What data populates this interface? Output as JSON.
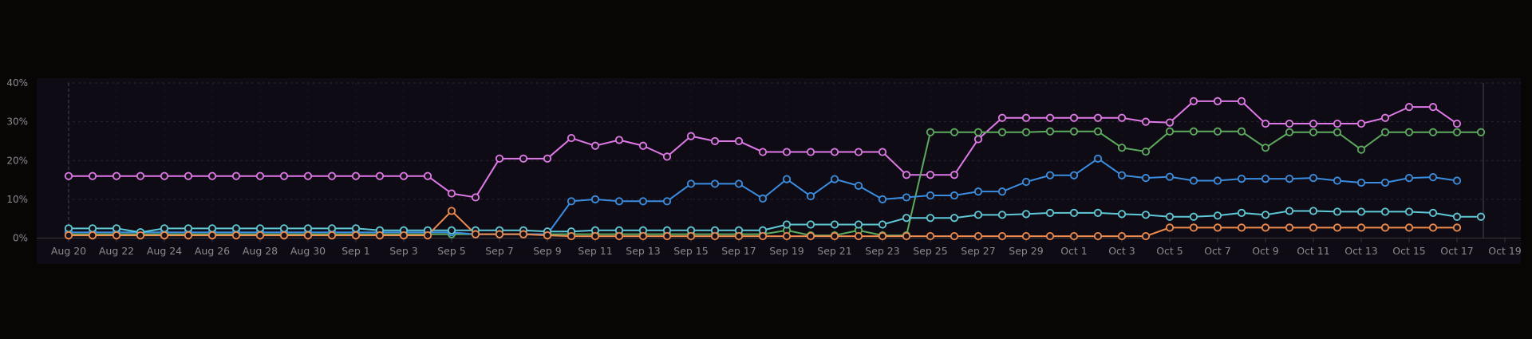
{
  "chart_data": {
    "type": "line",
    "title": "",
    "xlabel": "",
    "ylabel": "",
    "ylim": [
      0,
      40
    ],
    "y_ticks": [
      "0%",
      "10%",
      "20%",
      "30%",
      "40%"
    ],
    "x_ticks": [
      "Aug 20",
      "Aug 22",
      "Aug 24",
      "Aug 26",
      "Aug 28",
      "Aug 30",
      "Sep 1",
      "Sep 3",
      "Sep 5",
      "Sep 7",
      "Sep 9",
      "Sep 11",
      "Sep 13",
      "Sep 15",
      "Sep 17",
      "Sep 19",
      "Sep 21",
      "Sep 23",
      "Sep 25",
      "Sep 27",
      "Sep 29",
      "Oct 1",
      "Oct 3",
      "Oct 5",
      "Oct 7",
      "Oct 9",
      "Oct 11",
      "Oct 13",
      "Oct 15",
      "Oct 17",
      "Oct 19"
    ],
    "x_start": "Aug 20",
    "x_step_days": 1,
    "grid": true,
    "legend": "none",
    "background_color": "#070605",
    "plot_background_color": "#0e0b14",
    "series": [
      {
        "color": "#e079e8",
        "values": [
          16,
          16,
          16,
          16,
          16,
          16,
          16,
          16,
          16,
          16,
          16,
          16,
          16,
          16,
          16,
          16,
          11.5,
          10.5,
          20.5,
          20.5,
          20.5,
          25.8,
          23.8,
          25.3,
          23.8,
          21,
          26.3,
          25,
          25,
          22.2,
          22.2,
          22.2,
          22.2,
          22.2,
          22.2,
          16.3,
          16.3,
          16.3,
          25.5,
          31,
          31,
          31,
          31,
          31,
          31,
          30,
          29.8,
          35.3,
          35.3,
          35.3,
          29.5,
          29.5,
          29.5,
          29.5,
          29.5,
          31,
          33.8,
          33.8,
          29.5
        ]
      },
      {
        "color": "#5dab5f",
        "values": [
          1,
          1,
          1,
          1,
          1,
          1,
          1,
          1,
          1,
          1,
          1,
          1,
          1,
          1,
          1,
          1,
          1,
          1,
          1,
          1,
          1,
          1,
          1,
          1,
          1,
          1,
          1,
          1,
          1,
          1,
          2,
          0.7,
          0.7,
          2,
          0.7,
          0.7,
          27.3,
          27.3,
          27.3,
          27.3,
          27.3,
          27.5,
          27.5,
          27.5,
          23.3,
          22.3,
          27.5,
          27.5,
          27.5,
          27.5,
          23.3,
          27.3,
          27.3,
          27.3,
          22.8,
          27.3,
          27.3,
          27.3,
          27.3,
          27.3
        ]
      },
      {
        "color": "#3a8de0",
        "values": [
          1.5,
          1.5,
          1.5,
          1.5,
          1.5,
          1.5,
          1.5,
          1.5,
          1.5,
          1.5,
          1.5,
          1.5,
          1.5,
          1.5,
          1.5,
          1.5,
          1.5,
          1,
          1,
          1,
          1,
          9.5,
          10,
          9.5,
          9.5,
          9.5,
          14,
          14,
          14,
          10.2,
          15.2,
          10.8,
          15.2,
          13.5,
          10,
          10.5,
          11,
          11,
          12,
          12,
          14.5,
          16.2,
          16.2,
          20.5,
          16.2,
          15.5,
          15.8,
          14.8,
          14.8,
          15.3,
          15.3,
          15.3,
          15.5,
          14.8,
          14.3,
          14.3,
          15.5,
          15.7,
          14.8
        ]
      },
      {
        "color": "#5fc8d6",
        "values": [
          2.5,
          2.5,
          2.5,
          1.5,
          2.5,
          2.5,
          2.5,
          2.5,
          2.5,
          2.5,
          2.5,
          2.5,
          2.5,
          2,
          2,
          2,
          2,
          2,
          2,
          2,
          1.7,
          1.7,
          2,
          2,
          2,
          2,
          2,
          2,
          2,
          2,
          3.5,
          3.5,
          3.5,
          3.5,
          3.5,
          5.2,
          5.2,
          5.2,
          6,
          6,
          6.2,
          6.5,
          6.5,
          6.5,
          6.2,
          6,
          5.5,
          5.5,
          5.8,
          6.5,
          6,
          7,
          7,
          6.8,
          6.8,
          6.8,
          6.8,
          6.5,
          5.5,
          5.5
        ]
      },
      {
        "color": "#ef8b4e",
        "values": [
          0.7,
          0.7,
          0.7,
          0.7,
          0.7,
          0.7,
          0.7,
          0.7,
          0.7,
          0.7,
          0.7,
          0.7,
          0.7,
          0.7,
          0.7,
          0.7,
          7,
          1,
          1,
          1,
          0.7,
          0.5,
          0.5,
          0.5,
          0.5,
          0.5,
          0.5,
          0.5,
          0.5,
          0.5,
          0.5,
          0.5,
          0.5,
          0.5,
          0.5,
          0.5,
          0.5,
          0.5,
          0.5,
          0.5,
          0.5,
          0.5,
          0.5,
          0.5,
          0.5,
          0.5,
          2.7,
          2.7,
          2.7,
          2.7,
          2.7,
          2.7,
          2.7,
          2.7,
          2.7,
          2.7,
          2.7,
          2.7,
          2.7
        ]
      }
    ]
  }
}
